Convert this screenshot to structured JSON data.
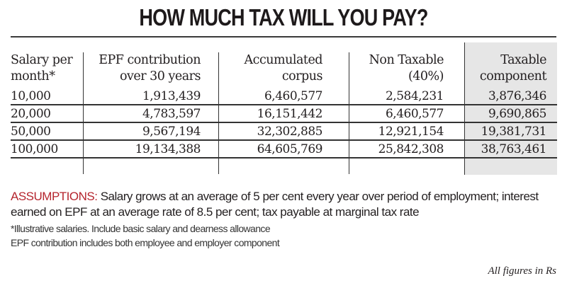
{
  "chart_data": {
    "type": "table",
    "title": "HOW MUCH TAX WILL YOU PAY?",
    "columns": [
      {
        "line1": "Salary per",
        "line2": "month*"
      },
      {
        "line1": "EPF contribution",
        "line2": "over 30 years"
      },
      {
        "line1": "Accumulated",
        "line2": "corpus"
      },
      {
        "line1": "Non Taxable",
        "line2": "(40%)"
      },
      {
        "line1": "Taxable",
        "line2": "component"
      }
    ],
    "rows": [
      [
        "10,000",
        "1,913,439",
        "6,460,577",
        "2,584,231",
        "3,876,346"
      ],
      [
        "20,000",
        "4,783,597",
        "16,151,442",
        "6,460,577",
        "9,690,865"
      ],
      [
        "50,000",
        "9,567,194",
        "32,302,885",
        "12,921,154",
        "19,381,731"
      ],
      [
        "100,000",
        "19,134,388",
        "64,605,769",
        "25,842,308",
        "38,763,461"
      ]
    ],
    "highlight_column_color": "#e6e6e6"
  },
  "notes": {
    "assumptions_label": "ASSUMPTIONS:",
    "assumptions_text": " Salary grows at an average of 5 per cent every year over period of employment; interest earned on EPF at an average rate of 8.5 per cent; tax payable at marginal tax rate",
    "footnote1": "*Illustrative salaries. Include basic salary and dearness allowance",
    "footnote2": "EPF contribution includes both employee and employer component",
    "units": "All figures in Rs",
    "label_color": "#b5252e"
  }
}
